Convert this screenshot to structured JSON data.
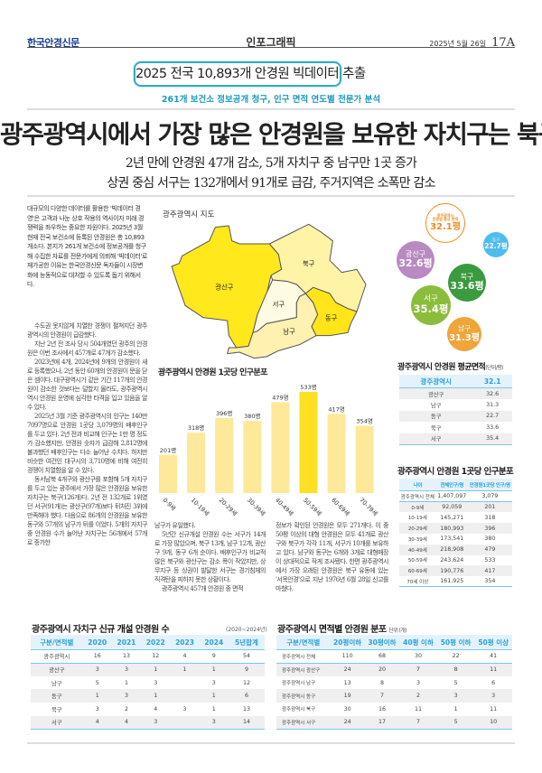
{
  "header": {
    "logo": "한국안경신문",
    "section": "인포그래픽",
    "date": "2025년 5월 26일",
    "page": "17A"
  },
  "banner": {
    "headline": "2025 전국 10,893개 안경원 빅데이터 추출",
    "subhead": "261개 보건소 정보공개 청구, 인구 면적 연도별 전문가 분석"
  },
  "article": {
    "title": "광주광역시에서 가장 많은 안경원을 보유한 자치구는 북구",
    "deck1": "2년 만에 안경원 47개 감소, 5개 자치구 중 남구만 1곳 증가",
    "deck2": "상권 중심 서구는 132개에서 91개로 급감, 주거지역은 소폭만 감소",
    "intro": "대규모의 다양한 데이터를 활용한 '빅데이터 경영'은 고객과 나눈 상호 작용의 역사이자 미래 경쟁력을 좌우하는 중요한 자원이다. 2025년 3월 현재 전국 보건소에 등록된 안경원은 총 10,893개소다. 본지가 261개 보건소에 정보공개를 청구해 수집한 자료를 전문가에게 의뢰해 '빅데이터'로 재가공한 이유는 한국안경신문 독자들이 시장변화에 능동적으로 대처할 수 있도록 돕기 위해서다.",
    "col1": [
      "수도권 못지않게 치열한 경쟁이 펼쳐지던 광주광역시의 안경원이 급감했다.",
      "지난 2년 전 조사 당시 504개였던 광주의 안경원은 이번 조사에서 457개로 47개가 감소했다.",
      "2023년에 4개, 2024년에 9개의 안경원이 새로 등록했으나, 2년 동안 60개의 안경원이 문을 닫은 셈이다. 대구광역시가 같은 기간 117개의 안경원이 감소한 것보다는 덜할지 몰라도, 광주광역시 역시 안경원 운영에 심각한 타격을 입고 있음을 알 수 있다.",
      "2025년 3월 기준 광주광역시의 인구는 140만 7097명으로 안경원 1곳당 3,079명의 배후인구를 두고 있다. 2년 전과 비교해 인구는 1만 명 정도가 감소했지만, 안경원 숫자가 급감해 2,812명에 불과했던 배후인구는 다소 늘어난 수치다. 하지만 비슷한 여건인 대구시의 3,710명에 비해 여전히 경쟁이 치열함을 알 수 있다.",
      "동서남북 4개구와 광산구를 포함해 5개 자치구를 두고 있는 광주에서 가장 많은 안경원을 보유한 자치구는 북구(126개)다. 2년 전 132개로 1위였던 서구(91개)는 광산구(97개)보다 뒤처진 3위에 만족해야 했다. 다음으로 86개의 안경원을 보유한 동구와 57개의 남구가 뒤를 이었다. 5개의 자치구 중 안경원 수가 늘어난 자치구는 56개에서 57개로 증가한"
    ],
    "col2": [
      "남구가 유일했다.",
      "5년간 신규개설 안경원 수는 서구가 14개로 가장 많았으며, 북구 13개, 남구 12개, 광산구 9개, 동구 6개 순이다. 배후인구가 비교적 많은 북구와 광산구는 감소 폭이 작았지만, 상무지구 등 상권이 발달한 서구는 경기침체의 직격탄을 피하지 못한 상황이다.",
      "광주광역시 457개 안경원 중 면적"
    ],
    "col3": [
      "정보가 확인된 안경원은 모두 271개다. 이 중 50평 이상의 대형 안경원은 모두 41개로 광산구와 북구가 각각 11개, 서구가 10개를 보유하고 있다. 남구와 동구는 6개와 3개로 대형매장이 상대적으로 작게 조사됐다. 한편 광주광역시에서 가장 오래된 안경원은 북구 유동에 있는 '서목안경'으로 지난 1976년 6월 28일 신고를 마쳤다."
    ]
  },
  "map": {
    "title": "광주광역시 지도",
    "districts": [
      {
        "name": "광산구",
        "color": "#ffe81c"
      },
      {
        "name": "북구",
        "color": "#fff4a6"
      },
      {
        "name": "서구",
        "color": "#fffbe2"
      },
      {
        "name": "남구",
        "color": "#fff1b0"
      },
      {
        "name": "동구",
        "color": "#ffe51a"
      }
    ]
  },
  "chart_data": {
    "type": "bar",
    "title": "광주광역시 안경원 1곳당 인구분포",
    "categories": [
      "0-9세",
      "10-19세",
      "20-29세",
      "30-39세",
      "40-49세",
      "50-59세",
      "60-69세",
      "70-79세"
    ],
    "values": [
      201,
      318,
      396,
      380,
      479,
      533,
      417,
      354
    ],
    "value_labels": [
      "201명",
      "318명",
      "396명",
      "380명",
      "479명",
      "533명",
      "417명",
      "354명"
    ],
    "ylim": [
      0,
      533
    ],
    "highlight": "50-59세",
    "colors": {
      "bar": "#fde999",
      "highlight": "#fde021"
    }
  },
  "bubbles": {
    "center": {
      "line1": "광주광역시",
      "line2": "안경원 평균 면적",
      "value": "32.1평",
      "color": "#f28a1c"
    },
    "items": [
      {
        "name": "동구",
        "value": "22.7평",
        "color": "#4dbdee"
      },
      {
        "name": "광산구",
        "value": "32.6평",
        "color": "#b98ac2"
      },
      {
        "name": "북구",
        "value": "33.6평",
        "color": "#3a9a3e"
      },
      {
        "name": "서구",
        "value": "35.4평",
        "color": "#8bbd3c"
      },
      {
        "name": "남구",
        "value": "31.3평",
        "color": "#f0a53a"
      }
    ]
  },
  "avg_area": {
    "title_pre": "광주광역시 안경원 ",
    "title_bold": "평균면적",
    "unit": "(단위/평)",
    "header": [
      "광주광역시",
      "32.1"
    ],
    "rows": [
      [
        "광산구",
        "32.6"
      ],
      [
        "남구",
        "31.3"
      ],
      [
        "동구",
        "22.7"
      ],
      [
        "북구",
        "33.6"
      ],
      [
        "서구",
        "35.4"
      ]
    ]
  },
  "pop_table": {
    "title": "광주광역시 안경원 1곳당 인구분포",
    "header": [
      "나이",
      "전체인구/명",
      "안경원1곳당 인구/명"
    ],
    "rows": [
      [
        "광주광역시 전체",
        "1,407,097",
        "3,079"
      ],
      [
        "0-9세",
        "92,059",
        "201"
      ],
      [
        "10-19세",
        "145,271",
        "318"
      ],
      [
        "20-29세",
        "180,993",
        "396"
      ],
      [
        "30-39세",
        "173,541",
        "380"
      ],
      [
        "40-49세",
        "218,908",
        "479"
      ],
      [
        "50-59세",
        "243,624",
        "533"
      ],
      [
        "60-69세",
        "190,776",
        "417"
      ],
      [
        "70세 이상",
        "161,925",
        "354"
      ]
    ]
  },
  "new_table": {
    "title_pre": "광주광역시 자치구 ",
    "title_bold": "신규 개설",
    "title_post": " 안경원 수",
    "note": "(2020~2024년)",
    "header": [
      "구분/면적별",
      "2020",
      "2021",
      "2022",
      "2023",
      "2024",
      "5년합계"
    ],
    "rows": [
      [
        "광주광역시",
        "16",
        "13",
        "12",
        "4",
        "9",
        "54"
      ],
      [
        "광산구",
        "3",
        "3",
        "1",
        "1",
        "1",
        "9"
      ],
      [
        "남구",
        "5",
        "1",
        "3",
        "",
        "3",
        "12"
      ],
      [
        "동구",
        "1",
        "3",
        "1",
        "",
        "1",
        "6"
      ],
      [
        "북구",
        "3",
        "2",
        "4",
        "3",
        "1",
        "13"
      ],
      [
        "서구",
        "4",
        "4",
        "3",
        "",
        "3",
        "14"
      ]
    ]
  },
  "size_table": {
    "title_pre": "광주광역시 ",
    "title_bold": "면적별",
    "title_post": " 안경원 분포",
    "unit": "단위 (개)",
    "header": [
      "구분/면적별",
      "20평이하",
      "30평이하",
      "40평 이하",
      "50평 이하",
      "50평 이상"
    ],
    "rows": [
      [
        "광주광역시 전체",
        "110",
        "68",
        "30",
        "22",
        "41"
      ],
      [
        "광주광역시 광산구",
        "24",
        "20",
        "7",
        "8",
        "11"
      ],
      [
        "광주광역시 남구",
        "13",
        "8",
        "3",
        "5",
        "6"
      ],
      [
        "광주광역시 동구",
        "19",
        "7",
        "2",
        "3",
        "3"
      ],
      [
        "광주광역시 북구",
        "30",
        "16",
        "11",
        "1",
        "11"
      ],
      [
        "광주광역시 서구",
        "24",
        "17",
        "7",
        "5",
        "10"
      ]
    ]
  }
}
